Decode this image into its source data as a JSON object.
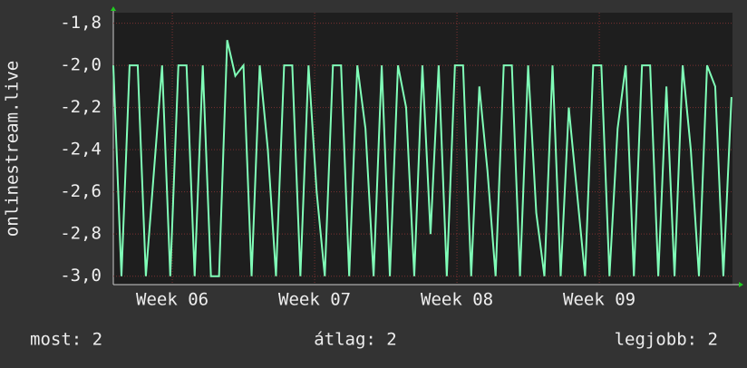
{
  "chart_data": {
    "type": "line",
    "y_label": "onlinestream.live",
    "x": [
      0,
      0.4,
      0.8,
      1.2,
      1.6,
      2,
      2.4,
      2.8,
      3.2,
      3.6,
      4,
      4.4,
      4.8,
      5.2,
      5.6,
      6,
      6.4,
      6.8,
      7.2,
      7.6,
      8,
      8.4,
      8.8,
      9.2,
      9.6,
      10,
      10.4,
      10.8,
      11.2,
      11.6,
      12,
      12.4,
      12.8,
      13.2,
      13.6,
      14,
      14.4,
      14.8,
      15.2,
      15.6,
      16,
      16.4,
      16.8,
      17.2,
      17.6,
      18,
      18.4,
      18.8,
      19.2,
      19.6,
      20,
      20.4,
      20.8,
      21.2,
      21.6,
      22,
      22.4,
      22.8,
      23.2,
      23.6,
      24,
      24.4,
      24.8,
      25.2,
      25.6,
      26,
      26.4,
      26.8,
      27.2,
      27.6,
      28,
      28.4,
      28.8,
      29.2,
      29.6,
      30,
      30.4
    ],
    "series": [
      {
        "color": "#80ffb8",
        "values": [
          -2,
          -3,
          -2,
          -2,
          -3,
          -2.5,
          -2,
          -3,
          -2,
          -2,
          -3,
          -2,
          -3,
          -3,
          -1.88,
          -2.05,
          -2,
          -3,
          -2,
          -2.4,
          -3,
          -2,
          -2,
          -3,
          -2,
          -2.6,
          -3,
          -2,
          -2,
          -3,
          -2,
          -2.3,
          -3,
          -2,
          -3,
          -2,
          -2.2,
          -3,
          -2,
          -2.8,
          -2,
          -3,
          -2,
          -2,
          -3,
          -2.1,
          -2.5,
          -3,
          -2,
          -2,
          -3,
          -2,
          -2.7,
          -3,
          -2,
          -3,
          -2.2,
          -2.6,
          -3,
          -2,
          -2,
          -3,
          -2.3,
          -2,
          -3,
          -2,
          -2,
          -3,
          -2.1,
          -3,
          -2,
          -2.4,
          -3,
          -2,
          -2.1,
          -3,
          -2.15
        ]
      }
    ],
    "xlim": [
      0,
      30.45
    ],
    "xticks": [
      {
        "value": 2.9,
        "label": "Week 06"
      },
      {
        "value": 9.9,
        "label": "Week 07"
      },
      {
        "value": 16.9,
        "label": "Week 08"
      },
      {
        "value": 23.9,
        "label": "Week 09"
      }
    ],
    "ylim": [
      -3.04,
      -1.75
    ],
    "yticks": [
      {
        "value": -3.0,
        "label": "-3,0"
      },
      {
        "value": -2.8,
        "label": "-2,8"
      },
      {
        "value": -2.6,
        "label": "-2,6"
      },
      {
        "value": -2.4,
        "label": "-2,4"
      },
      {
        "value": -2.2,
        "label": "-2,2"
      },
      {
        "value": -2.0,
        "label": "-2,0"
      },
      {
        "value": -1.8,
        "label": "-1,8"
      }
    ],
    "grid": true,
    "footer": [
      "most: 2",
      "átlag: 2",
      "legjobb: 2"
    ]
  }
}
